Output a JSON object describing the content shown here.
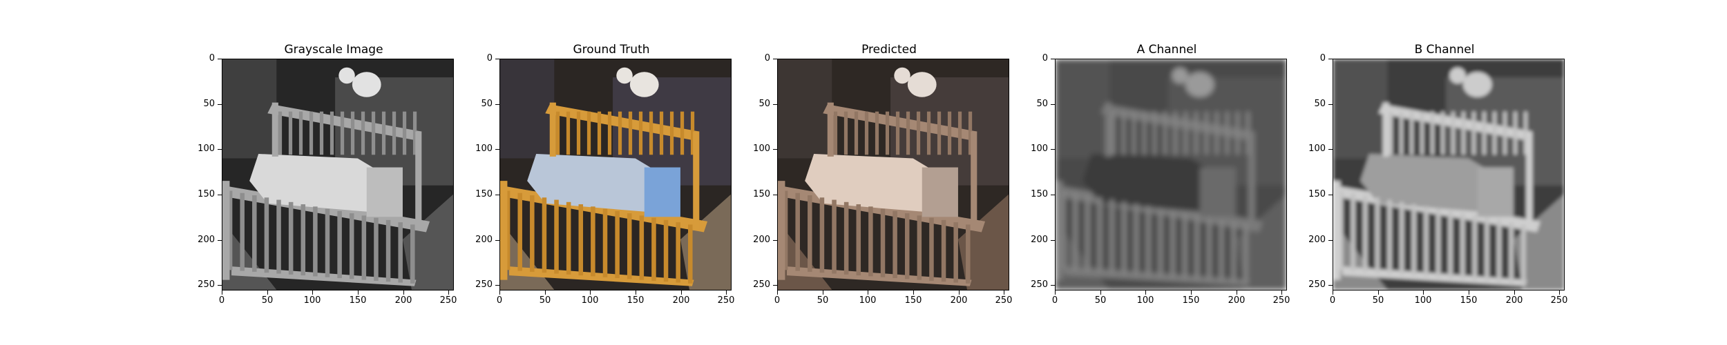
{
  "figure": {
    "panels": [
      {
        "title": "Grayscale Image",
        "render": "gray"
      },
      {
        "title": "Ground Truth",
        "render": "color"
      },
      {
        "title": "Predicted",
        "render": "predicted"
      },
      {
        "title": "A Channel",
        "render": "achannel"
      },
      {
        "title": "B Channel",
        "render": "bchannel"
      }
    ],
    "x_ticks": [
      "0",
      "50",
      "100",
      "150",
      "200",
      "250"
    ],
    "y_ticks": [
      "0",
      "50",
      "100",
      "150",
      "200",
      "250"
    ]
  }
}
